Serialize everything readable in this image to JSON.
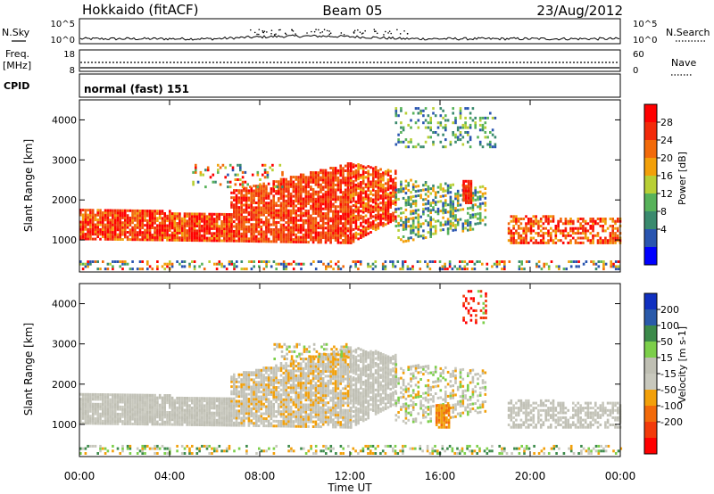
{
  "header": {
    "station": "Hokkaido (fitACF)",
    "beam": "Beam 05",
    "date": "23/Aug/2012"
  },
  "noise_panel": {
    "left_label": "N.Sky",
    "left_ticks": [
      "10^5",
      "10^0"
    ],
    "right_ticks": [
      "10^5",
      "10^0"
    ],
    "right_label": "N.Search"
  },
  "freq_panel": {
    "left_label_1": "Freq.",
    "left_label_2": "[MHz]",
    "left_ticks": [
      "18",
      "8"
    ],
    "right_ticks": [
      "60",
      "0"
    ],
    "right_label": "Nave"
  },
  "cpid_panel": {
    "label": "CPID",
    "mode": "normal (fast) 151"
  },
  "colors": {
    "power_scale": [
      "#0000ff",
      "#2a55b0",
      "#3a8a6e",
      "#57b25a",
      "#b8cf35",
      "#f2a00a",
      "#f26a0a",
      "#f22a0a",
      "#ff0000"
    ],
    "velocity_scale": [
      "#1030c0",
      "#2a5aaa",
      "#3c8a4a",
      "#7ccf4a",
      "#bfbfb3",
      "#c8c8bd",
      "#f2a00a",
      "#f26a0a",
      "#f23a0a",
      "#ff0000"
    ]
  },
  "chart_data": [
    {
      "type": "heatmap",
      "name": "power",
      "ylabel": "Slant Range [km]",
      "yticks": [
        "1000",
        "2000",
        "3000",
        "4000"
      ],
      "ylim": [
        200,
        4500
      ],
      "xlim": [
        "00:00",
        "24:00"
      ],
      "colorbar": {
        "label": "Power [dB]",
        "ticks": [
          "4",
          "8",
          "12",
          "16",
          "20",
          "24",
          "28"
        ],
        "range": [
          0,
          32
        ]
      }
    },
    {
      "type": "heatmap",
      "name": "velocity",
      "ylabel": "Slant Range [km]",
      "yticks": [
        "1000",
        "2000",
        "3000",
        "4000"
      ],
      "ylim": [
        200,
        4500
      ],
      "xlim": [
        "00:00",
        "24:00"
      ],
      "colorbar": {
        "label": "Velocity [m s-1]",
        "ticks": [
          "200",
          "100",
          "50",
          "15",
          "-15",
          "-50",
          "-100",
          "-200"
        ]
      }
    }
  ],
  "x_axis": {
    "label": "Time UT",
    "ticks": [
      "00:00",
      "04:00",
      "08:00",
      "12:00",
      "16:00",
      "20:00",
      "00:00"
    ]
  }
}
